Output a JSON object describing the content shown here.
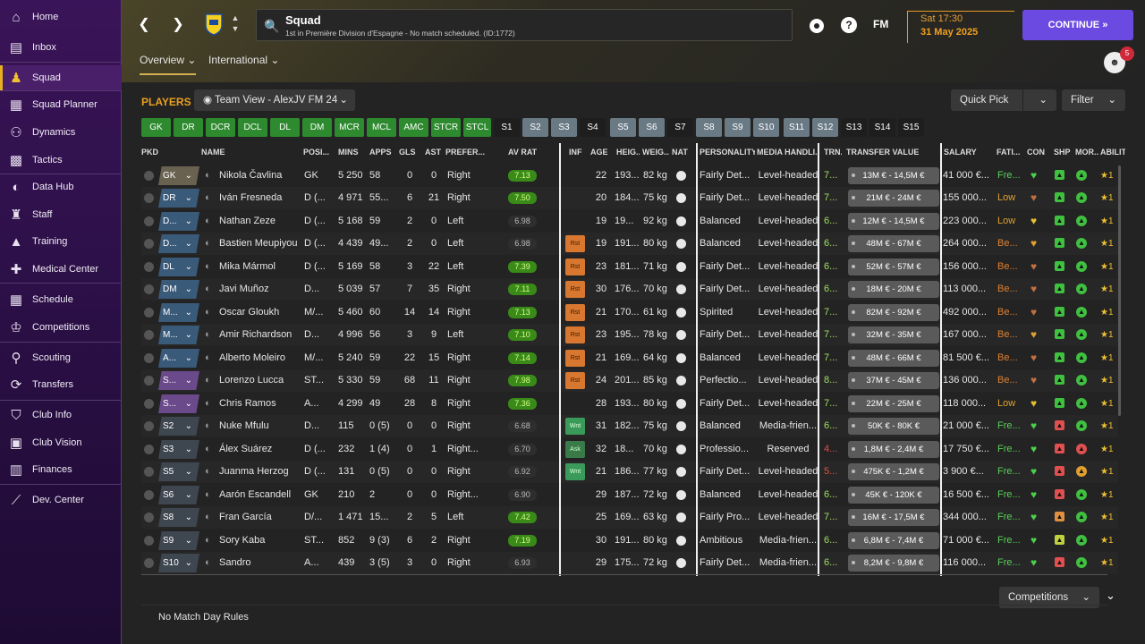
{
  "sidebar": {
    "items": [
      {
        "label": "Home",
        "icon": "home-icon"
      },
      {
        "label": "Inbox",
        "icon": "inbox-icon"
      },
      {
        "label": "Squad",
        "icon": "squad-icon"
      },
      {
        "label": "Squad Planner",
        "icon": "clipboard-icon"
      },
      {
        "label": "Dynamics",
        "icon": "dynamics-icon"
      },
      {
        "label": "Tactics",
        "icon": "tactics-icon"
      },
      {
        "label": "Data Hub",
        "icon": "data-hub-icon"
      },
      {
        "label": "Staff",
        "icon": "staff-icon"
      },
      {
        "label": "Training",
        "icon": "training-icon"
      },
      {
        "label": "Medical Center",
        "icon": "medical-icon"
      },
      {
        "label": "Schedule",
        "icon": "calendar-icon"
      },
      {
        "label": "Competitions",
        "icon": "trophy-icon"
      },
      {
        "label": "Scouting",
        "icon": "scouting-icon"
      },
      {
        "label": "Transfers",
        "icon": "transfers-icon"
      },
      {
        "label": "Club Info",
        "icon": "shield-icon"
      },
      {
        "label": "Club Vision",
        "icon": "briefcase-icon"
      },
      {
        "label": "Finances",
        "icon": "finances-icon"
      },
      {
        "label": "Dev. Center",
        "icon": "dev-center-icon"
      }
    ]
  },
  "header": {
    "title": "Squad",
    "subtitle": "1st in Première Division d'Espagne - No match scheduled. (ID:1772)",
    "fm": "FM",
    "help": "?",
    "time": "Sat 17:30",
    "date": "31 May 2025",
    "continue_label": "CONTINUE",
    "notifications": "5",
    "tabs": [
      "Overview",
      "International"
    ]
  },
  "players_title": "PLAYERS",
  "view_select": "Team View - AlexJV FM 24",
  "quick_pick": "Quick Pick",
  "filter": "Filter",
  "position_buttons": [
    {
      "label": "GK",
      "s": "g"
    },
    {
      "label": "DR",
      "s": "g"
    },
    {
      "label": "DCR",
      "s": "g"
    },
    {
      "label": "DCL",
      "s": "g"
    },
    {
      "label": "DL",
      "s": "g"
    },
    {
      "label": "DM",
      "s": "g"
    },
    {
      "label": "MCR",
      "s": "g"
    },
    {
      "label": "MCL",
      "s": "g"
    },
    {
      "label": "AMC",
      "s": "g"
    },
    {
      "label": "STCR",
      "s": "g"
    },
    {
      "label": "STCL",
      "s": "g"
    },
    {
      "label": "S1",
      "s": "k"
    },
    {
      "label": "S2",
      "s": "gy"
    },
    {
      "label": "S3",
      "s": "gy"
    },
    {
      "label": "S4",
      "s": "k"
    },
    {
      "label": "S5",
      "s": "gy"
    },
    {
      "label": "S6",
      "s": "gy"
    },
    {
      "label": "S7",
      "s": "k"
    },
    {
      "label": "S8",
      "s": "gy"
    },
    {
      "label": "S9",
      "s": "gy"
    },
    {
      "label": "S10",
      "s": "gy"
    },
    {
      "label": "S11",
      "s": "gy"
    },
    {
      "label": "S12",
      "s": "gy"
    },
    {
      "label": "S13",
      "s": "k"
    },
    {
      "label": "S14",
      "s": "k"
    },
    {
      "label": "S15",
      "s": "k"
    }
  ],
  "columns": [
    "PKD",
    "NAME",
    "POSI...",
    "MINS",
    "APPS",
    "GLS",
    "AST",
    "PREFER...",
    "AV RAT",
    "INF",
    "AGE",
    "HEIG...",
    "WEIG...",
    "NAT",
    "PERSONALITY",
    "MEDIA HANDLI...",
    "TRN...",
    "TRANSFER VALUE",
    "SALARY",
    "FATI...",
    "CON",
    "SHP",
    "MOR...",
    "ABILIT"
  ],
  "players": [
    {
      "pkd": "GK",
      "pc": "#6a6250",
      "name": "Nikola Čavlina",
      "pos": "GK",
      "mins": "5 250",
      "apps": "58",
      "gls": "0",
      "ast": "0",
      "foot": "Right",
      "rat": "7.13",
      "hi": true,
      "inf": "",
      "age": "22",
      "hgt": "193...",
      "wgt": "82 kg",
      "pers": "Fairly Det...",
      "media": "Level-headed",
      "trn": "7...",
      "tv": "13M € - 14,5M €",
      "sal": "41 000 €...",
      "fat": "Fre...",
      "fc": "#5ad05a",
      "con": "#4ad04a",
      "shp": "#40c040",
      "mor": "#40c040",
      "abil": "★1"
    },
    {
      "pkd": "DR",
      "pc": "#3a5a7a",
      "name": "Iván Fresneda",
      "pos": "D (...",
      "mins": "4 971",
      "apps": "55...",
      "gls": "6",
      "ast": "21",
      "foot": "Right",
      "rat": "7.50",
      "hi": true,
      "inf": "",
      "age": "20",
      "hgt": "184...",
      "wgt": "75 kg",
      "pers": "Fairly Det...",
      "media": "Level-headed",
      "trn": "7...",
      "tv": "21M € - 24M €",
      "sal": "155 000...",
      "fat": "Low",
      "fc": "#e0a030",
      "con": "#c07040",
      "shp": "#40c040",
      "mor": "#40c040",
      "abil": "★1"
    },
    {
      "pkd": "D...",
      "pc": "#3a5a7a",
      "name": "Nathan Zeze",
      "pos": "D (...",
      "mins": "5 168",
      "apps": "59",
      "gls": "2",
      "ast": "0",
      "foot": "Left",
      "rat": "6.98",
      "hi": false,
      "inf": "",
      "age": "19",
      "hgt": "19...",
      "wgt": "92 kg",
      "pers": "Balanced",
      "media": "Level-headed",
      "trn": "6...",
      "tv": "12M € - 14,5M €",
      "sal": "223 000...",
      "fat": "Low",
      "fc": "#e0a030",
      "con": "#e0c030",
      "shp": "#40c040",
      "mor": "#40c040",
      "abil": "★1"
    },
    {
      "pkd": "D...",
      "pc": "#3a5a7a",
      "name": "Bastien Meupiyou",
      "pos": "D (...",
      "mins": "4 439",
      "apps": "49...",
      "gls": "2",
      "ast": "0",
      "foot": "Left",
      "rat": "6.98",
      "hi": false,
      "inf": "Rst",
      "age": "19",
      "hgt": "191...",
      "wgt": "80 kg",
      "pers": "Balanced",
      "media": "Level-headed",
      "trn": "6...",
      "tv": "48M € - 67M €",
      "sal": "264 000...",
      "fat": "Be...",
      "fc": "#e08030",
      "con": "#e0a030",
      "shp": "#40c040",
      "mor": "#40c040",
      "abil": "★1"
    },
    {
      "pkd": "DL",
      "pc": "#3a5a7a",
      "name": "Mika Mármol",
      "pos": "D (...",
      "mins": "5 169",
      "apps": "58",
      "gls": "3",
      "ast": "22",
      "foot": "Left",
      "rat": "7.39",
      "hi": true,
      "inf": "Rst",
      "age": "23",
      "hgt": "181...",
      "wgt": "71 kg",
      "pers": "Fairly Det...",
      "media": "Level-headed",
      "trn": "6...",
      "tv": "52M € - 57M €",
      "sal": "156 000...",
      "fat": "Be...",
      "fc": "#e08030",
      "con": "#c07040",
      "shp": "#40c040",
      "mor": "#40c040",
      "abil": "★1"
    },
    {
      "pkd": "DM",
      "pc": "#3a5a7a",
      "name": "Javi Muñoz",
      "pos": "D...",
      "mins": "5 039",
      "apps": "57",
      "gls": "7",
      "ast": "35",
      "foot": "Right",
      "rat": "7.11",
      "hi": true,
      "inf": "Rst",
      "age": "30",
      "hgt": "176...",
      "wgt": "70 kg",
      "pers": "Fairly Det...",
      "media": "Level-headed",
      "trn": "6...",
      "tv": "18M € - 20M €",
      "sal": "113 000...",
      "fat": "Be...",
      "fc": "#e08030",
      "con": "#c07040",
      "shp": "#40c040",
      "mor": "#40c040",
      "abil": "★1"
    },
    {
      "pkd": "M...",
      "pc": "#3a5a7a",
      "name": "Oscar Gloukh",
      "pos": "M/...",
      "mins": "5 460",
      "apps": "60",
      "gls": "14",
      "ast": "14",
      "foot": "Right",
      "rat": "7.13",
      "hi": true,
      "inf": "Rst",
      "age": "21",
      "hgt": "170...",
      "wgt": "61 kg",
      "pers": "Spirited",
      "media": "Level-headed",
      "trn": "7...",
      "tv": "82M € - 92M €",
      "sal": "492 000...",
      "fat": "Be...",
      "fc": "#e08030",
      "con": "#c07040",
      "shp": "#40c040",
      "mor": "#40c040",
      "abil": "★1"
    },
    {
      "pkd": "M...",
      "pc": "#3a5a7a",
      "name": "Amir Richardson",
      "pos": "D...",
      "mins": "4 996",
      "apps": "56",
      "gls": "3",
      "ast": "9",
      "foot": "Left",
      "rat": "7.10",
      "hi": true,
      "inf": "Rst",
      "age": "23",
      "hgt": "195...",
      "wgt": "78 kg",
      "pers": "Fairly Det...",
      "media": "Level-headed",
      "trn": "7...",
      "tv": "32M € - 35M €",
      "sal": "167 000...",
      "fat": "Be...",
      "fc": "#e08030",
      "con": "#e0a030",
      "shp": "#40c040",
      "mor": "#40c040",
      "abil": "★1"
    },
    {
      "pkd": "A...",
      "pc": "#3a5a7a",
      "name": "Alberto Moleiro",
      "pos": "M/...",
      "mins": "5 240",
      "apps": "59",
      "gls": "22",
      "ast": "15",
      "foot": "Right",
      "rat": "7.14",
      "hi": true,
      "inf": "Rst",
      "age": "21",
      "hgt": "169...",
      "wgt": "64 kg",
      "pers": "Balanced",
      "media": "Level-headed",
      "trn": "7...",
      "tv": "48M € - 66M €",
      "sal": "81 500 €...",
      "fat": "Be...",
      "fc": "#e08030",
      "con": "#c07040",
      "shp": "#40c040",
      "mor": "#40c040",
      "abil": "★1"
    },
    {
      "pkd": "S...",
      "pc": "#6a4a8a",
      "name": "Lorenzo Lucca",
      "pos": "ST...",
      "mins": "5 330",
      "apps": "59",
      "gls": "68",
      "ast": "11",
      "foot": "Right",
      "rat": "7.98",
      "hi": true,
      "inf": "Rst",
      "age": "24",
      "hgt": "201...",
      "wgt": "85 kg",
      "pers": "Perfectio...",
      "media": "Level-headed",
      "trn": "8...",
      "tv": "37M € - 45M €",
      "sal": "136 000...",
      "fat": "Be...",
      "fc": "#e08030",
      "con": "#c07040",
      "shp": "#40c040",
      "mor": "#40c040",
      "abil": "★1"
    },
    {
      "pkd": "S...",
      "pc": "#6a4a8a",
      "name": "Chris Ramos",
      "pos": "A...",
      "mins": "4 299",
      "apps": "49",
      "gls": "28",
      "ast": "8",
      "foot": "Right",
      "rat": "7.36",
      "hi": true,
      "inf": "",
      "age": "28",
      "hgt": "193...",
      "wgt": "80 kg",
      "pers": "Fairly Det...",
      "media": "Level-headed",
      "trn": "7...",
      "tv": "22M € - 25M €",
      "sal": "118 000...",
      "fat": "Low",
      "fc": "#e0a030",
      "con": "#e0c030",
      "shp": "#40c040",
      "mor": "#40c040",
      "abil": "★1"
    },
    {
      "pkd": "S2",
      "pc": "#3e4650",
      "name": "Nuke Mfulu",
      "pos": "D...",
      "mins": "115",
      "apps": "0 (5)",
      "gls": "0",
      "ast": "0",
      "foot": "Right",
      "rat": "6.68",
      "hi": false,
      "inf": "Wnt",
      "age": "31",
      "hgt": "182...",
      "wgt": "75 kg",
      "pers": "Balanced",
      "media": "Media-frien...",
      "trn": "6...",
      "tv": "50K € - 80K €",
      "sal": "21 000 €...",
      "fat": "Fre...",
      "fc": "#5ad05a",
      "con": "#4ad04a",
      "shp": "#e05050",
      "mor": "#40c040",
      "abil": "★1"
    },
    {
      "pkd": "S3",
      "pc": "#3e4650",
      "name": "Álex Suárez",
      "pos": "D (...",
      "mins": "232",
      "apps": "1 (4)",
      "gls": "0",
      "ast": "1",
      "foot": "Right...",
      "rat": "6.70",
      "hi": false,
      "inf": "Ask",
      "age": "32",
      "hgt": "18...",
      "wgt": "70 kg",
      "pers": "Professio...",
      "media": "Reserved",
      "trn": "4...",
      "tv": "1,8M € - 2,4M €",
      "sal": "17 750 €...",
      "fat": "Fre...",
      "fc": "#5ad05a",
      "con": "#4ad04a",
      "shp": "#e05050",
      "mor": "#e05050",
      "abil": "★1"
    },
    {
      "pkd": "S5",
      "pc": "#3e4650",
      "name": "Juanma Herzog",
      "pos": "D (...",
      "mins": "131",
      "apps": "0 (5)",
      "gls": "0",
      "ast": "0",
      "foot": "Right",
      "rat": "6.92",
      "hi": false,
      "inf": "Wnt",
      "age": "21",
      "hgt": "186...",
      "wgt": "77 kg",
      "pers": "Fairly Det...",
      "media": "Level-headed",
      "trn": "5...",
      "tv": "475K € - 1,2M €",
      "sal": "3 900 €...",
      "fat": "Fre...",
      "fc": "#5ad05a",
      "con": "#4ad04a",
      "shp": "#e05050",
      "mor": "#e0a030",
      "abil": "★1"
    },
    {
      "pkd": "S6",
      "pc": "#3e4650",
      "name": "Aarón Escandell",
      "pos": "GK",
      "mins": "210",
      "apps": "2",
      "gls": "0",
      "ast": "0",
      "foot": "Right...",
      "rat": "6.90",
      "hi": false,
      "inf": "",
      "age": "29",
      "hgt": "187...",
      "wgt": "72 kg",
      "pers": "Balanced",
      "media": "Level-headed",
      "trn": "6...",
      "tv": "45K € - 120K €",
      "sal": "16 500 €...",
      "fat": "Fre...",
      "fc": "#5ad05a",
      "con": "#4ad04a",
      "shp": "#e05050",
      "mor": "#40c040",
      "abil": "★1"
    },
    {
      "pkd": "S8",
      "pc": "#3e4650",
      "name": "Fran García",
      "pos": "D/...",
      "mins": "1 471",
      "apps": "15...",
      "gls": "2",
      "ast": "5",
      "foot": "Left",
      "rat": "7.42",
      "hi": true,
      "inf": "",
      "age": "25",
      "hgt": "169...",
      "wgt": "63 kg",
      "pers": "Fairly Pro...",
      "media": "Level-headed",
      "trn": "7...",
      "tv": "16M € - 17,5M €",
      "sal": "344 000...",
      "fat": "Fre...",
      "fc": "#5ad05a",
      "con": "#4ad04a",
      "shp": "#e09040",
      "mor": "#40c040",
      "abil": "★1"
    },
    {
      "pkd": "S9",
      "pc": "#3e4650",
      "name": "Sory Kaba",
      "pos": "ST...",
      "mins": "852",
      "apps": "9 (3)",
      "gls": "6",
      "ast": "2",
      "foot": "Right",
      "rat": "7.19",
      "hi": true,
      "inf": "",
      "age": "30",
      "hgt": "191...",
      "wgt": "80 kg",
      "pers": "Ambitious",
      "media": "Media-frien...",
      "trn": "6...",
      "tv": "6,8M € - 7,4M €",
      "sal": "71 000 €...",
      "fat": "Fre...",
      "fc": "#5ad05a",
      "con": "#4ad04a",
      "shp": "#c0d040",
      "mor": "#40c040",
      "abil": "★1"
    },
    {
      "pkd": "S10",
      "pc": "#3e4650",
      "name": "Sandro",
      "pos": "A...",
      "mins": "439",
      "apps": "3 (5)",
      "gls": "3",
      "ast": "0",
      "foot": "Right",
      "rat": "6.93",
      "hi": false,
      "inf": "",
      "age": "29",
      "hgt": "175...",
      "wgt": "72 kg",
      "pers": "Fairly Det...",
      "media": "Media-frien...",
      "trn": "6...",
      "tv": "8,2M € - 9,8M €",
      "sal": "116 000...",
      "fat": "Fre...",
      "fc": "#5ad05a",
      "con": "#4ad04a",
      "shp": "#e05050",
      "mor": "#40c040",
      "abil": "★1"
    }
  ],
  "competitions": "Competitions",
  "no_match": "No Match Day Rules",
  "colors": {
    "accent": "#6a4ae0",
    "players_title": "#e8a020",
    "date": "#f0a020"
  }
}
